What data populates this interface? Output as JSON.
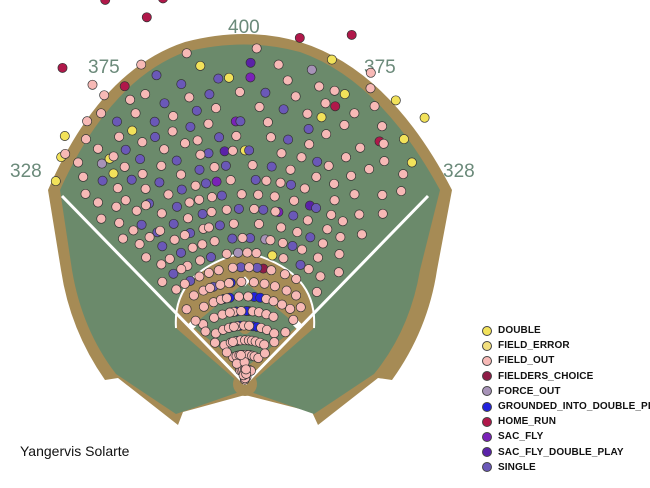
{
  "player_name": "Yangervis Solarte",
  "colors": {
    "dirt": "#a68b55",
    "grass": "#6b8a6b",
    "lines": "#ffffff"
  },
  "chart_data": {
    "type": "scatter",
    "title": "",
    "distance_labels": {
      "left_line": "328",
      "left_center": "375",
      "center": "400",
      "right_center": "375",
      "right_line": "328"
    },
    "categories": [
      {
        "name": "DOUBLE",
        "color": "#f2e25a"
      },
      {
        "name": "FIELD_ERROR",
        "color": "#f2df7e"
      },
      {
        "name": "FIELD_OUT",
        "color": "#f7b9b6"
      },
      {
        "name": "FIELDERS_CHOICE",
        "color": "#8e1c46"
      },
      {
        "name": "FORCE_OUT",
        "color": "#a793b8"
      },
      {
        "name": "GROUNDED_INTO_DOUBLE_PLAY",
        "color": "#2222dd"
      },
      {
        "name": "HOME_RUN",
        "color": "#b0184a"
      },
      {
        "name": "SAC_FLY",
        "color": "#7a22b8"
      },
      {
        "name": "SAC_FLY_DOUBLE_PLAY",
        "color": "#5a22a8"
      },
      {
        "name": "SINGLE",
        "color": "#6a58b8"
      }
    ],
    "points": [
      [
        24,
        9,
        6
      ],
      [
        25,
        17,
        6
      ],
      [
        27,
        3,
        6
      ],
      [
        28,
        7,
        6
      ],
      [
        28,
        12,
        6
      ],
      [
        26,
        -15,
        6
      ],
      [
        27,
        -12,
        6
      ],
      [
        28,
        -20,
        6
      ],
      [
        29,
        -14,
        6
      ],
      [
        25,
        -30,
        6
      ],
      [
        31,
        -2,
        6
      ],
      [
        32,
        16,
        6
      ],
      [
        19,
        29,
        6
      ],
      [
        20,
        18,
        6
      ],
      [
        22,
        -22,
        6
      ],
      [
        22,
        -8,
        0
      ],
      [
        21,
        -3,
        0
      ],
      [
        22,
        28,
        0
      ],
      [
        20,
        33,
        0
      ],
      [
        19,
        37,
        0
      ],
      [
        21,
        -36,
        0
      ],
      [
        22,
        34,
        0
      ],
      [
        19,
        -43,
        0
      ],
      [
        20,
        -39,
        0
      ],
      [
        18,
        -31,
        0
      ],
      [
        21,
        19,
        0
      ],
      [
        19,
        -24,
        0
      ],
      [
        17,
        -32,
        0
      ],
      [
        23,
        15,
        0
      ],
      [
        16,
        0,
        0
      ],
      [
        9,
        12,
        0
      ],
      [
        19,
        16,
        0
      ],
      [
        22,
        12,
        4
      ],
      [
        18,
        -33,
        4
      ],
      [
        9,
        -3,
        4
      ],
      [
        10,
        8,
        4
      ],
      [
        21,
        1,
        7
      ],
      [
        18,
        -2,
        7
      ],
      [
        14,
        -8,
        7
      ],
      [
        12,
        11,
        7
      ],
      [
        22,
        1,
        8
      ],
      [
        16,
        -5,
        8
      ],
      [
        13,
        20,
        8
      ],
      [
        8,
        9,
        3
      ],
      [
        5,
        3,
        3
      ],
      [
        6,
        6,
        5
      ],
      [
        5,
        1,
        5
      ],
      [
        4,
        8,
        5
      ],
      [
        5,
        -7,
        5
      ],
      [
        6,
        -10,
        5
      ],
      [
        4,
        -5,
        5
      ],
      [
        5,
        -12,
        5
      ],
      [
        3,
        -10,
        5
      ],
      [
        2,
        -14,
        5
      ],
      [
        6,
        -14,
        5
      ],
      [
        7,
        -8,
        5
      ],
      [
        4,
        -13,
        5
      ],
      [
        1,
        -10,
        5
      ],
      [
        2,
        -7,
        5
      ],
      [
        6,
        10,
        5
      ],
      [
        4,
        12,
        5
      ],
      [
        2,
        10,
        5
      ],
      [
        1,
        6,
        5
      ],
      [
        1,
        -3,
        5
      ],
      [
        21,
        -5,
        9
      ],
      [
        20,
        -16,
        9
      ],
      [
        19,
        -10,
        9
      ],
      [
        18,
        -20,
        9
      ],
      [
        17,
        -6,
        9
      ],
      [
        17,
        -25,
        9
      ],
      [
        16,
        -17,
        9
      ],
      [
        15,
        -23,
        9
      ],
      [
        15,
        -12,
        9
      ],
      [
        14,
        -18,
        9
      ],
      [
        14,
        -28,
        9
      ],
      [
        13,
        -21,
        9
      ],
      [
        12,
        -24,
        9
      ],
      [
        11,
        -20,
        9
      ],
      [
        12,
        -30,
        9
      ],
      [
        18,
        -12,
        9
      ],
      [
        16,
        -9,
        9
      ],
      [
        15,
        -5,
        9
      ],
      [
        14,
        -11,
        9
      ],
      [
        13,
        -7,
        9
      ],
      [
        12,
        -14,
        9
      ],
      [
        11,
        -9,
        9
      ],
      [
        10,
        -5,
        9
      ],
      [
        9,
        -15,
        9
      ],
      [
        10,
        -26,
        9
      ],
      [
        8,
        -28,
        9
      ],
      [
        9,
        -33,
        9
      ],
      [
        11,
        -31,
        9
      ],
      [
        13,
        -33,
        9
      ],
      [
        16,
        -29,
        9
      ],
      [
        17,
        -35,
        9
      ],
      [
        18,
        -27,
        9
      ],
      [
        19,
        -19,
        9
      ],
      [
        20,
        -7,
        9
      ],
      [
        21,
        -12,
        9
      ],
      [
        20,
        4,
        9
      ],
      [
        19,
        8,
        9
      ],
      [
        18,
        14,
        9
      ],
      [
        17,
        10,
        9
      ],
      [
        16,
        18,
        9
      ],
      [
        15,
        7,
        9
      ],
      [
        14,
        13,
        9
      ],
      [
        13,
        22,
        9
      ],
      [
        12,
        16,
        9
      ],
      [
        11,
        24,
        9
      ],
      [
        10,
        19,
        9
      ],
      [
        9,
        25,
        9
      ],
      [
        12,
        6,
        9
      ],
      [
        14,
        3,
        9
      ],
      [
        16,
        1,
        9
      ],
      [
        18,
        -1,
        9
      ],
      [
        10,
        2,
        9
      ],
      [
        8,
        6,
        9
      ],
      [
        8,
        -2,
        9
      ],
      [
        7,
        -18,
        9
      ],
      [
        12,
        -2,
        9
      ],
      [
        20,
        -26,
        9
      ],
      [
        22,
        -16,
        9
      ],
      [
        23,
        -18,
        2
      ],
      [
        23,
        -10,
        2
      ],
      [
        23,
        2,
        2
      ],
      [
        23,
        22,
        2
      ],
      [
        21,
        -28,
        2
      ],
      [
        21,
        -19,
        2
      ],
      [
        21,
        8,
        2
      ],
      [
        21,
        14,
        2
      ],
      [
        21,
        25,
        2
      ],
      [
        20,
        -33,
        2
      ],
      [
        20,
        -22,
        2
      ],
      [
        20,
        -1,
        2
      ],
      [
        20,
        10,
        2
      ],
      [
        20,
        22,
        2
      ],
      [
        20,
        28,
        2
      ],
      [
        19,
        -37,
        2
      ],
      [
        19,
        -27,
        2
      ],
      [
        19,
        -6,
        2
      ],
      [
        19,
        3,
        2
      ],
      [
        19,
        13,
        2
      ],
      [
        19,
        21,
        2
      ],
      [
        18,
        -38,
        2
      ],
      [
        18,
        -23,
        2
      ],
      [
        18,
        -16,
        2
      ],
      [
        18,
        -8,
        2
      ],
      [
        18,
        5,
        2
      ],
      [
        18,
        18,
        2
      ],
      [
        18,
        26,
        2
      ],
      [
        18,
        32,
        2
      ],
      [
        17,
        -40,
        2
      ],
      [
        17,
        -29,
        2
      ],
      [
        17,
        -14,
        2
      ],
      [
        17,
        -2,
        2
      ],
      [
        17,
        6,
        2
      ],
      [
        17,
        15,
        2
      ],
      [
        17,
        24,
        2
      ],
      [
        17,
        30,
        2
      ],
      [
        16,
        -39,
        2
      ],
      [
        16,
        -33,
        2
      ],
      [
        16,
        -21,
        2
      ],
      [
        16,
        -11,
        2
      ],
      [
        16,
        -3,
        2
      ],
      [
        16,
        9,
        2
      ],
      [
        16,
        21,
        2
      ],
      [
        16,
        27,
        2
      ],
      [
        16,
        36,
        2
      ],
      [
        15,
        -41,
        2
      ],
      [
        15,
        -36,
        2
      ],
      [
        15,
        -27,
        2
      ],
      [
        15,
        -17,
        2
      ],
      [
        15,
        -8,
        2
      ],
      [
        15,
        2,
        2
      ],
      [
        15,
        12,
        2
      ],
      [
        15,
        24,
        2
      ],
      [
        15,
        30,
        2
      ],
      [
        15,
        39,
        2
      ],
      [
        14,
        -38,
        2
      ],
      [
        14,
        -32,
        2
      ],
      [
        14,
        -22,
        2
      ],
      [
        14,
        -14,
        2
      ],
      [
        14,
        -4,
        2
      ],
      [
        14,
        6,
        2
      ],
      [
        14,
        17,
        2
      ],
      [
        14,
        26,
        2
      ],
      [
        14,
        34,
        2
      ],
      [
        13,
        -40,
        2
      ],
      [
        13,
        -36,
        2
      ],
      [
        13,
        -26,
        2
      ],
      [
        13,
        -17,
        2
      ],
      [
        13,
        -10,
        2
      ],
      [
        13,
        -1,
        2
      ],
      [
        13,
        9,
        2
      ],
      [
        13,
        15,
        2
      ],
      [
        13,
        27,
        2
      ],
      [
        13,
        31,
        2
      ],
      [
        13,
        38,
        2
      ],
      [
        12,
        -37,
        2
      ],
      [
        12,
        -33,
        2
      ],
      [
        12,
        -19,
        2
      ],
      [
        12,
        -11,
        2
      ],
      [
        12,
        3,
        2
      ],
      [
        12,
        10,
        2
      ],
      [
        12,
        21,
        2
      ],
      [
        12,
        28,
        2
      ],
      [
        12,
        33,
        2
      ],
      [
        11,
        -38,
        2
      ],
      [
        11,
        -26,
        2
      ],
      [
        11,
        -15,
        2
      ],
      [
        11,
        -4,
        2
      ],
      [
        11,
        5,
        2
      ],
      [
        11,
        13,
        2
      ],
      [
        11,
        19,
        2
      ],
      [
        11,
        29,
        2
      ],
      [
        11,
        36,
        2
      ],
      [
        10,
        -35,
        2
      ],
      [
        10,
        -31,
        2
      ],
      [
        10,
        -21,
        2
      ],
      [
        10,
        -12,
        2
      ],
      [
        10,
        -1,
        2
      ],
      [
        10,
        10,
        2
      ],
      [
        10,
        15,
        2
      ],
      [
        10,
        23,
        2
      ],
      [
        10,
        30,
        2
      ],
      [
        10,
        40,
        2
      ],
      [
        9,
        -39,
        2
      ],
      [
        9,
        -26,
        2
      ],
      [
        9,
        -20,
        2
      ],
      [
        9,
        -8,
        2
      ],
      [
        9,
        1,
        2
      ],
      [
        9,
        5,
        2
      ],
      [
        9,
        17,
        2
      ],
      [
        9,
        29,
        2
      ],
      [
        9,
        35,
        2
      ],
      [
        8,
        -36,
        2
      ],
      [
        8,
        -31,
        2
      ],
      [
        8,
        -23,
        2
      ],
      [
        8,
        -13,
        2
      ],
      [
        8,
        -6,
        2
      ],
      [
        8,
        2,
        2
      ],
      [
        8,
        13,
        2
      ],
      [
        8,
        20,
        2
      ],
      [
        8,
        26,
        2
      ],
      [
        8,
        38,
        2
      ],
      [
        7,
        -30,
        2
      ],
      [
        7,
        -24,
        2
      ],
      [
        7,
        -14,
        2
      ],
      [
        7,
        -9,
        2
      ],
      [
        7,
        -2,
        2
      ],
      [
        7,
        5,
        2
      ],
      [
        7,
        11,
        2
      ],
      [
        7,
        17,
        2
      ],
      [
        7,
        24,
        2
      ],
      [
        7,
        30,
        2
      ],
      [
        6,
        -28,
        2
      ],
      [
        6,
        -21,
        2
      ],
      [
        6,
        -16,
        2
      ],
      [
        6,
        -4,
        2
      ],
      [
        6,
        2,
        2
      ],
      [
        6,
        14,
        2
      ],
      [
        6,
        19,
        2
      ],
      [
        6,
        25,
        2
      ],
      [
        6,
        31,
        2
      ],
      [
        5,
        -35,
        2
      ],
      [
        5,
        -25,
        2
      ],
      [
        5,
        -18,
        2
      ],
      [
        5,
        -9,
        2
      ],
      [
        5,
        -3,
        2
      ],
      [
        5,
        6,
        2
      ],
      [
        5,
        11,
        2
      ],
      [
        5,
        17,
        2
      ],
      [
        5,
        23,
        2
      ],
      [
        4,
        -30,
        2
      ],
      [
        4,
        -22,
        2
      ],
      [
        4,
        -16,
        2
      ],
      [
        4,
        -8,
        2
      ],
      [
        4,
        -1,
        2
      ],
      [
        4,
        4,
        2
      ],
      [
        4,
        16,
        2
      ],
      [
        4,
        22,
        2
      ],
      [
        4,
        30,
        2
      ],
      [
        3,
        -28,
        2
      ],
      [
        3,
        -19,
        2
      ],
      [
        3,
        -13,
        2
      ],
      [
        3,
        -6,
        2
      ],
      [
        3,
        0,
        2
      ],
      [
        3,
        5,
        2
      ],
      [
        3,
        9,
        2
      ],
      [
        3,
        14,
        2
      ],
      [
        3,
        20,
        2
      ],
      [
        3,
        26,
        2
      ],
      [
        2,
        -24,
        2
      ],
      [
        2,
        -17,
        2
      ],
      [
        2,
        -11,
        2
      ],
      [
        2,
        -4,
        2
      ],
      [
        2,
        2,
        2
      ],
      [
        2,
        7,
        2
      ],
      [
        2,
        14,
        2
      ],
      [
        2,
        19,
        2
      ],
      [
        2,
        27,
        2
      ],
      [
        1,
        -20,
        2
      ],
      [
        1,
        -14,
        2
      ],
      [
        1,
        -7,
        2
      ],
      [
        1,
        0,
        2
      ],
      [
        1,
        9,
        2
      ],
      [
        1,
        17,
        2
      ],
      [
        1,
        24,
        2
      ],
      [
        0.5,
        -5,
        2
      ],
      [
        0.5,
        4,
        2
      ],
      [
        0.5,
        12,
        2
      ],
      [
        0.3,
        -2,
        2
      ],
      [
        0.4,
        1,
        2
      ],
      [
        0.6,
        -9,
        2
      ],
      [
        0.7,
        7,
        2
      ],
      [
        1.5,
        -22,
        2
      ],
      [
        1.5,
        -1,
        2
      ],
      [
        2.5,
        -30,
        2
      ],
      [
        2.5,
        33,
        2
      ],
      [
        3.5,
        -36,
        2
      ],
      [
        3.5,
        35,
        2
      ],
      [
        4.5,
        -37,
        2
      ],
      [
        4.5,
        38,
        2
      ],
      [
        5.5,
        -38,
        2
      ],
      [
        5.5,
        37,
        2
      ],
      [
        6.5,
        -38,
        2
      ],
      [
        6.5,
        36,
        2
      ],
      [
        12,
        -29,
        2
      ],
      [
        14,
        -29,
        2
      ],
      [
        16,
        -26,
        2
      ],
      [
        17,
        -19,
        2
      ],
      [
        18,
        -30,
        2
      ],
      [
        19,
        -15,
        2
      ],
      [
        20,
        -11,
        2
      ],
      [
        21,
        -22,
        2
      ],
      [
        21,
        17,
        2
      ],
      [
        22,
        -26,
        2
      ],
      [
        22,
        23,
        2
      ],
      [
        23,
        -27,
        2
      ],
      [
        22,
        6,
        2
      ],
      [
        20,
        16,
        2
      ],
      [
        19,
        30,
        2
      ],
      [
        18,
        37,
        2
      ],
      [
        17,
        39,
        2
      ],
      [
        16,
        14,
        2
      ],
      [
        15,
        19,
        2
      ],
      [
        14,
        10,
        2
      ],
      [
        13,
        4,
        2
      ],
      [
        12,
        -6,
        2
      ],
      [
        11,
        -13,
        2
      ],
      [
        10,
        -17,
        2
      ],
      [
        9,
        -29,
        2
      ],
      [
        8,
        -18,
        2
      ],
      [
        7,
        -20,
        2
      ],
      [
        6,
        -12,
        2
      ],
      [
        5,
        -12,
        2
      ],
      [
        4,
        -11,
        2
      ],
      [
        3,
        -16,
        2
      ],
      [
        2,
        -8,
        2
      ],
      [
        1,
        4,
        2
      ],
      [
        11,
        -22,
        2
      ],
      [
        13,
        -14,
        2
      ],
      [
        15,
        -33,
        2
      ],
      [
        17,
        -11,
        2
      ],
      [
        19,
        -32,
        2
      ],
      [
        20,
        -38,
        2
      ],
      [
        21,
        -31,
        2
      ]
    ]
  }
}
